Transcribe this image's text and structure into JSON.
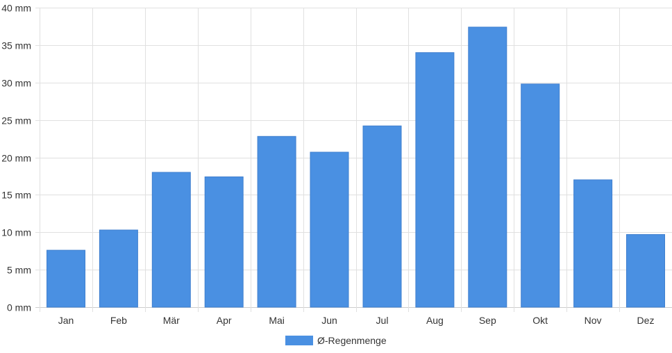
{
  "chart_data": {
    "type": "bar",
    "categories": [
      "Jan",
      "Feb",
      "Mär",
      "Apr",
      "Mai",
      "Jun",
      "Jul",
      "Aug",
      "Sep",
      "Okt",
      "Nov",
      "Dez"
    ],
    "series": [
      {
        "name": "Ø-Regenmenge",
        "values": [
          7.6,
          10.3,
          18.0,
          17.4,
          22.8,
          20.7,
          24.2,
          34.0,
          37.4,
          29.8,
          17.0,
          9.7
        ],
        "color": "#4a90e2"
      }
    ],
    "ylim": [
      0,
      40
    ],
    "yticks": [
      0,
      5,
      10,
      15,
      20,
      25,
      30,
      35,
      40
    ],
    "yunit": "mm",
    "grid": true,
    "legend_position": "bottom"
  }
}
